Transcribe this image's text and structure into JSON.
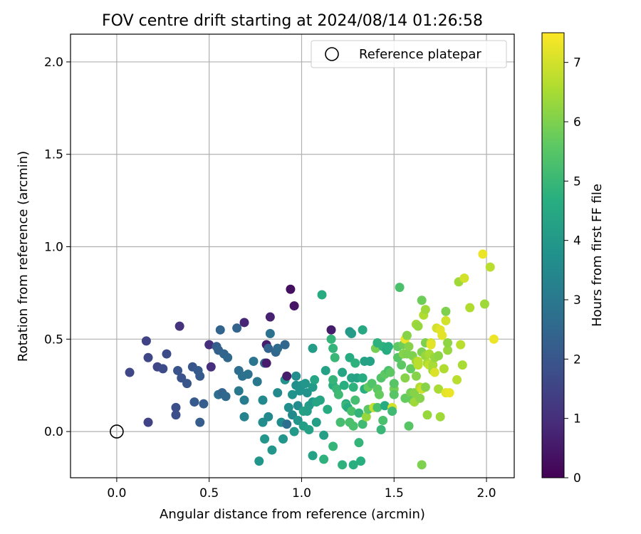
{
  "chart_data": {
    "type": "scatter",
    "title": "FOV centre drift starting at 2024/08/14 01:26:58",
    "xlabel": "Angular distance from reference (arcmin)",
    "ylabel": "Rotation from reference (arcmin)",
    "xlim": [
      -0.25,
      2.15
    ],
    "ylim": [
      -0.25,
      2.15
    ],
    "xticks": [
      0.0,
      0.5,
      1.0,
      1.5,
      2.0
    ],
    "xtick_labels": [
      "0.0",
      "0.5",
      "1.0",
      "1.5",
      "2.0"
    ],
    "yticks": [
      0.0,
      0.5,
      1.0,
      1.5,
      2.0
    ],
    "ytick_labels": [
      "0.0",
      "0.5",
      "1.0",
      "1.5",
      "2.0"
    ],
    "grid": true,
    "legend": {
      "position": "top-right",
      "entries": [
        "Reference platepar"
      ]
    },
    "reference_point": {
      "x": 0.0,
      "y": 0.0,
      "label": "Reference platepar"
    },
    "colorbar": {
      "label": "Hours from first FF file",
      "range": [
        0,
        7.5
      ],
      "ticks": [
        0,
        1,
        2,
        3,
        4,
        5,
        6,
        7
      ],
      "tick_labels": [
        "0",
        "1",
        "2",
        "3",
        "4",
        "5",
        "6",
        "7"
      ],
      "colormap": "viridis"
    },
    "points": [
      [
        0.07,
        0.32,
        1.6
      ],
      [
        0.16,
        0.49,
        1.5
      ],
      [
        0.17,
        0.4,
        1.6
      ],
      [
        0.17,
        0.05,
        1.5
      ],
      [
        0.22,
        0.35,
        1.6
      ],
      [
        0.25,
        0.34,
        1.7
      ],
      [
        0.27,
        0.42,
        1.7
      ],
      [
        0.32,
        0.13,
        1.8
      ],
      [
        0.32,
        0.09,
        1.8
      ],
      [
        0.33,
        0.33,
        1.9
      ],
      [
        0.34,
        0.57,
        1.1
      ],
      [
        0.35,
        0.29,
        1.9
      ],
      [
        0.38,
        0.26,
        2.0
      ],
      [
        0.41,
        0.35,
        2.0
      ],
      [
        0.42,
        0.16,
        2.1
      ],
      [
        0.44,
        0.33,
        2.1
      ],
      [
        0.45,
        0.3,
        2.1
      ],
      [
        0.45,
        0.05,
        2.2
      ],
      [
        0.47,
        0.15,
        2.2
      ],
      [
        0.5,
        0.47,
        1.0
      ],
      [
        0.51,
        0.35,
        1.0
      ],
      [
        0.54,
        0.46,
        2.2
      ],
      [
        0.55,
        0.44,
        2.3
      ],
      [
        0.55,
        0.2,
        2.7
      ],
      [
        0.56,
        0.55,
        2.4
      ],
      [
        0.57,
        0.21,
        2.4
      ],
      [
        0.58,
        0.42,
        2.4
      ],
      [
        0.59,
        0.19,
        2.5
      ],
      [
        0.6,
        0.4,
        2.5
      ],
      [
        0.65,
        0.56,
        2.4
      ],
      [
        0.66,
        0.22,
        3.0
      ],
      [
        0.66,
        0.33,
        2.7
      ],
      [
        0.68,
        0.3,
        2.8
      ],
      [
        0.69,
        0.59,
        0.8
      ],
      [
        0.69,
        0.17,
        3.1
      ],
      [
        0.69,
        0.08,
        3.3
      ],
      [
        0.71,
        0.31,
        2.8
      ],
      [
        0.74,
        0.38,
        2.9
      ],
      [
        0.76,
        0.27,
        3.0
      ],
      [
        0.77,
        -0.16,
        3.9
      ],
      [
        0.79,
        0.17,
        3.5
      ],
      [
        0.79,
        0.05,
        3.6
      ],
      [
        0.8,
        0.37,
        2.5
      ],
      [
        0.8,
        -0.04,
        3.9
      ],
      [
        0.81,
        0.47,
        0.6
      ],
      [
        0.81,
        0.37,
        0.6
      ],
      [
        0.82,
        0.08,
        3.5
      ],
      [
        0.82,
        0.45,
        2.4
      ],
      [
        0.83,
        0.62,
        0.7
      ],
      [
        0.83,
        0.53,
        2.8
      ],
      [
        0.84,
        -0.1,
        3.9
      ],
      [
        0.86,
        0.43,
        2.5
      ],
      [
        0.87,
        0.21,
        3.5
      ],
      [
        0.87,
        0.45,
        2.6
      ],
      [
        0.89,
        0.05,
        3.6
      ],
      [
        0.9,
        -0.04,
        3.9
      ],
      [
        0.91,
        0.47,
        2.5
      ],
      [
        0.91,
        0.28,
        3.8
      ],
      [
        0.92,
        0.04,
        2.7
      ],
      [
        0.92,
        0.3,
        0.6
      ],
      [
        0.93,
        0.13,
        3.7
      ],
      [
        0.94,
        0.77,
        0.3
      ],
      [
        0.95,
        0.2,
        3.8
      ],
      [
        0.95,
        0.09,
        3.5
      ],
      [
        0.96,
        0.0,
        4.0
      ],
      [
        0.96,
        0.68,
        0.4
      ],
      [
        0.97,
        0.3,
        3.6
      ],
      [
        0.97,
        0.25,
        3.7
      ],
      [
        0.98,
        0.14,
        3.6
      ],
      [
        0.98,
        0.06,
        3.9
      ],
      [
        0.99,
        0.22,
        3.8
      ],
      [
        1.0,
        0.25,
        3.8
      ],
      [
        1.01,
        0.11,
        4.3
      ],
      [
        1.01,
        0.03,
        4.2
      ],
      [
        1.02,
        0.26,
        3.9
      ],
      [
        1.03,
        0.21,
        3.8
      ],
      [
        1.03,
        0.11,
        4.2
      ],
      [
        1.04,
        0.14,
        4.1
      ],
      [
        1.04,
        0.01,
        4.3
      ],
      [
        1.06,
        0.16,
        4.0
      ],
      [
        1.06,
        0.24,
        4.0
      ],
      [
        1.06,
        0.45,
        4.1
      ],
      [
        1.06,
        -0.13,
        4.3
      ],
      [
        1.07,
        0.28,
        4.4
      ],
      [
        1.08,
        0.05,
        4.2
      ],
      [
        1.08,
        0.16,
        4.4
      ],
      [
        1.1,
        0.17,
        4.4
      ],
      [
        1.11,
        0.74,
        4.6
      ],
      [
        1.12,
        -0.02,
        4.2
      ],
      [
        1.12,
        -0.15,
        4.8
      ],
      [
        1.13,
        0.33,
        4.3
      ],
      [
        1.14,
        0.12,
        4.6
      ],
      [
        1.16,
        0.55,
        0.6
      ],
      [
        1.16,
        0.5,
        4.9
      ],
      [
        1.17,
        0.45,
        4.9
      ],
      [
        1.17,
        0.25,
        4.7
      ],
      [
        1.17,
        -0.08,
        4.9
      ],
      [
        1.17,
        0.28,
        4.9
      ],
      [
        1.18,
        0.4,
        5.0
      ],
      [
        1.19,
        0.23,
        5.0
      ],
      [
        1.2,
        0.2,
        5.1
      ],
      [
        1.21,
        0.05,
        5.2
      ],
      [
        1.22,
        -0.18,
        4.8
      ],
      [
        1.22,
        0.32,
        4.4
      ],
      [
        1.23,
        0.25,
        4.7
      ],
      [
        1.24,
        0.15,
        4.6
      ],
      [
        1.24,
        0.14,
        5.0
      ],
      [
        1.25,
        0.13,
        4.6
      ],
      [
        1.26,
        0.05,
        5.3
      ],
      [
        1.26,
        0.4,
        4.6
      ],
      [
        1.26,
        0.54,
        3.9
      ],
      [
        1.27,
        0.53,
        4.1
      ],
      [
        1.27,
        0.29,
        4.4
      ],
      [
        1.27,
        0.11,
        5.3
      ],
      [
        1.28,
        0.03,
        5.3
      ],
      [
        1.28,
        0.24,
        4.8
      ],
      [
        1.28,
        -0.18,
        4.7
      ],
      [
        1.29,
        0.37,
        4.8
      ],
      [
        1.29,
        0.17,
        5.2
      ],
      [
        1.3,
        0.29,
        4.3
      ],
      [
        1.31,
        -0.06,
        4.9
      ],
      [
        1.31,
        0.1,
        4.9
      ],
      [
        1.32,
        -0.16,
        4.7
      ],
      [
        1.33,
        0.55,
        4.5
      ],
      [
        1.33,
        0.29,
        4.6
      ],
      [
        1.33,
        0.04,
        5.1
      ],
      [
        1.34,
        0.23,
        4.7
      ],
      [
        1.34,
        0.38,
        4.3
      ],
      [
        1.35,
        0.08,
        6.3
      ],
      [
        1.36,
        0.12,
        5.6
      ],
      [
        1.36,
        0.24,
        5.7
      ],
      [
        1.37,
        0.38,
        4.3
      ],
      [
        1.37,
        0.38,
        4.3
      ],
      [
        1.38,
        0.26,
        5.4
      ],
      [
        1.39,
        0.13,
        6.8
      ],
      [
        1.4,
        0.45,
        5.9
      ],
      [
        1.41,
        0.48,
        4.8
      ],
      [
        1.41,
        0.23,
        5.6
      ],
      [
        1.41,
        0.13,
        5.3
      ],
      [
        1.42,
        0.2,
        5.7
      ],
      [
        1.43,
        0.01,
        5.0
      ],
      [
        1.43,
        0.29,
        5.4
      ],
      [
        1.44,
        0.06,
        5.3
      ],
      [
        1.44,
        0.46,
        4.8
      ],
      [
        1.45,
        0.14,
        4.6
      ],
      [
        1.45,
        0.31,
        5.6
      ],
      [
        1.46,
        0.44,
        4.6
      ],
      [
        1.47,
        0.33,
        5.3
      ],
      [
        1.47,
        0.46,
        4.7
      ],
      [
        1.48,
        0.32,
        5.6
      ],
      [
        1.49,
        0.13,
        7.0
      ],
      [
        1.49,
        0.11,
        5.1
      ],
      [
        1.5,
        0.23,
        5.9
      ],
      [
        1.5,
        0.26,
        5.5
      ],
      [
        1.5,
        0.2,
        5.5
      ],
      [
        1.52,
        0.4,
        5.5
      ],
      [
        1.52,
        0.46,
        5.6
      ],
      [
        1.53,
        0.78,
        5.3
      ],
      [
        1.54,
        0.36,
        5.6
      ],
      [
        1.55,
        0.42,
        6.1
      ],
      [
        1.55,
        0.47,
        5.8
      ],
      [
        1.56,
        0.18,
        5.7
      ],
      [
        1.56,
        0.29,
        6.1
      ],
      [
        1.56,
        0.5,
        7.3
      ],
      [
        1.57,
        0.52,
        6.1
      ],
      [
        1.57,
        0.42,
        6.0
      ],
      [
        1.58,
        0.03,
        5.5
      ],
      [
        1.58,
        0.46,
        6.1
      ],
      [
        1.59,
        0.34,
        5.7
      ],
      [
        1.59,
        0.21,
        5.9
      ],
      [
        1.6,
        0.41,
        6.0
      ],
      [
        1.6,
        0.17,
        5.7
      ],
      [
        1.61,
        0.16,
        6.4
      ],
      [
        1.61,
        0.21,
        6.1
      ],
      [
        1.62,
        0.38,
        6.3
      ],
      [
        1.62,
        0.3,
        6.1
      ],
      [
        1.62,
        0.58,
        6.4
      ],
      [
        1.63,
        0.38,
        6.7
      ],
      [
        1.63,
        0.36,
        6.7
      ],
      [
        1.63,
        0.57,
        6.3
      ],
      [
        1.64,
        0.24,
        6.6
      ],
      [
        1.64,
        0.18,
        6.1
      ],
      [
        1.65,
        0.43,
        6.0
      ],
      [
        1.65,
        0.71,
        5.8
      ],
      [
        1.65,
        -0.18,
        6.0
      ],
      [
        1.65,
        0.23,
        6.9
      ],
      [
        1.66,
        0.63,
        6.6
      ],
      [
        1.67,
        0.24,
        6.1
      ],
      [
        1.67,
        0.41,
        6.3
      ],
      [
        1.67,
        0.48,
        6.0
      ],
      [
        1.67,
        0.66,
        6.4
      ],
      [
        1.68,
        0.37,
        6.5
      ],
      [
        1.68,
        0.09,
        6.3
      ],
      [
        1.69,
        0.36,
        6.8
      ],
      [
        1.69,
        0.42,
        6.5
      ],
      [
        1.7,
        0.48,
        7.0
      ],
      [
        1.7,
        0.47,
        7.2
      ],
      [
        1.71,
        0.33,
        6.4
      ],
      [
        1.71,
        0.36,
        6.5
      ],
      [
        1.72,
        0.4,
        6.3
      ],
      [
        1.72,
        0.32,
        7.1
      ],
      [
        1.73,
        0.56,
        7.0
      ],
      [
        1.74,
        0.41,
        6.2
      ],
      [
        1.74,
        0.23,
        6.5
      ],
      [
        1.75,
        0.08,
        6.4
      ],
      [
        1.75,
        0.55,
        7.2
      ],
      [
        1.76,
        0.52,
        7.2
      ],
      [
        1.77,
        0.34,
        6.6
      ],
      [
        1.78,
        0.21,
        7.2
      ],
      [
        1.78,
        0.6,
        7.0
      ],
      [
        1.78,
        0.65,
        6.0
      ],
      [
        1.79,
        0.44,
        6.3
      ],
      [
        1.79,
        0.48,
        6.2
      ],
      [
        1.8,
        0.21,
        7.3
      ],
      [
        1.84,
        0.28,
        6.7
      ],
      [
        1.85,
        0.81,
        6.4
      ],
      [
        1.86,
        0.47,
        6.7
      ],
      [
        1.87,
        0.36,
        6.5
      ],
      [
        1.88,
        0.83,
        7.0
      ],
      [
        1.91,
        0.67,
        6.6
      ],
      [
        1.98,
        0.96,
        7.3
      ],
      [
        1.99,
        0.69,
        6.4
      ],
      [
        2.02,
        0.89,
        6.7
      ],
      [
        2.04,
        0.5,
        7.3
      ]
    ]
  }
}
